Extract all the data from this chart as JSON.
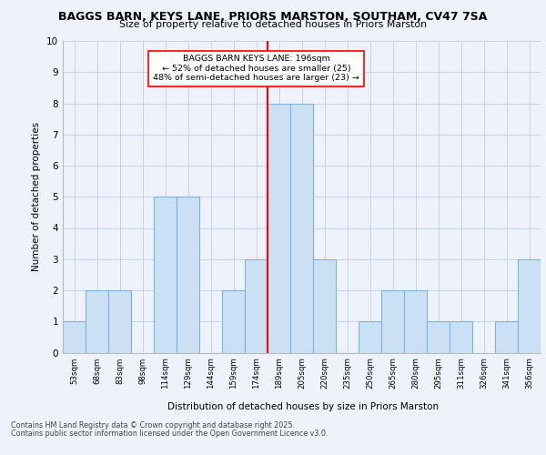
{
  "title_line1": "BAGGS BARN, KEYS LANE, PRIORS MARSTON, SOUTHAM, CV47 7SA",
  "title_line2": "Size of property relative to detached houses in Priors Marston",
  "xlabel": "Distribution of detached houses by size in Priors Marston",
  "ylabel": "Number of detached properties",
  "categories": [
    "53sqm",
    "68sqm",
    "83sqm",
    "98sqm",
    "114sqm",
    "129sqm",
    "144sqm",
    "159sqm",
    "174sqm",
    "189sqm",
    "205sqm",
    "220sqm",
    "235sqm",
    "250sqm",
    "265sqm",
    "280sqm",
    "295sqm",
    "311sqm",
    "326sqm",
    "341sqm",
    "356sqm"
  ],
  "values": [
    1,
    2,
    2,
    0,
    5,
    5,
    0,
    2,
    3,
    8,
    8,
    3,
    0,
    1,
    2,
    2,
    1,
    1,
    0,
    1,
    3
  ],
  "bar_color": "#cce0f5",
  "bar_edge_color": "#7ab4dc",
  "red_line_index": 9,
  "annotation_title": "BAGGS BARN KEYS LANE: 196sqm",
  "annotation_line2": "← 52% of detached houses are smaller (25)",
  "annotation_line3": "48% of semi-detached houses are larger (23) →",
  "ylim": [
    0,
    10
  ],
  "yticks": [
    0,
    1,
    2,
    3,
    4,
    5,
    6,
    7,
    8,
    9,
    10
  ],
  "footer_line1": "Contains HM Land Registry data © Crown copyright and database right 2025.",
  "footer_line2": "Contains public sector information licensed under the Open Government Licence v3.0.",
  "bg_color": "#eef2fa",
  "plot_bg_color": "#eef2fa",
  "grid_color": "#c8d4e8"
}
